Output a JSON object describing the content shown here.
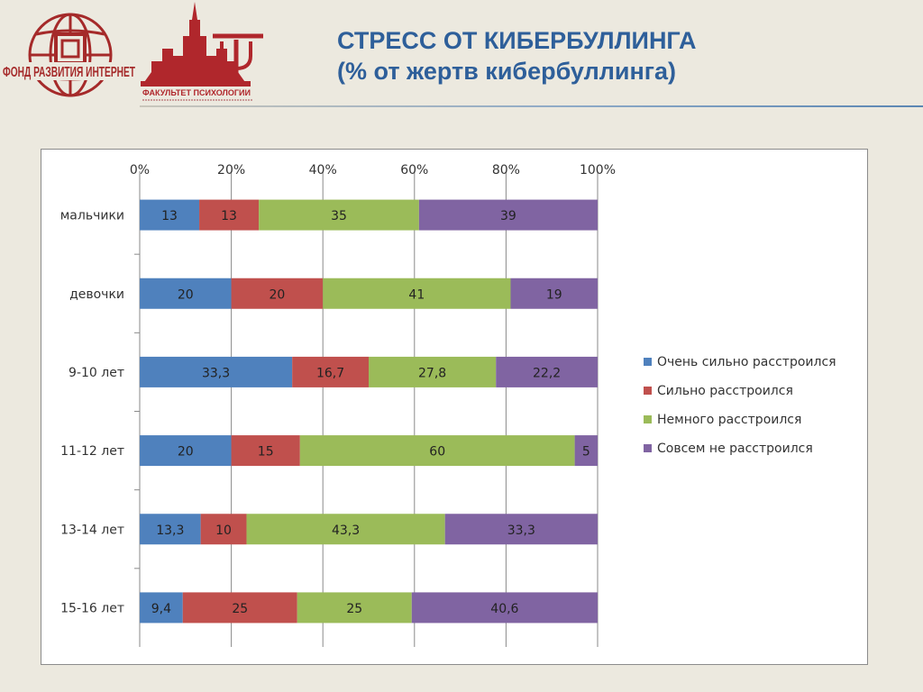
{
  "logos": {
    "left_text": "ФОНД РАЗВИТИЯ ИНТЕРНЕТ",
    "right_text": "ФАКУЛЬТЕТ ПСИХОЛОГИИ"
  },
  "title": {
    "line1": "СТРЕСС ОТ КИБЕРБУЛЛИНГА",
    "line2": "(% от жертв кибербуллинга)"
  },
  "colors": {
    "title": "#2e5f9a",
    "logo_red": "#a52a2a",
    "series": [
      "#4f81bd",
      "#c0504d",
      "#9bbb59",
      "#8064a2"
    ]
  },
  "chart_data": {
    "type": "bar",
    "orientation": "horizontal",
    "stacked": "percent",
    "categories": [
      "мальчики",
      "девочки",
      "9-10 лет",
      "11-12 лет",
      "13-14 лет",
      "15-16 лет"
    ],
    "x_ticks": [
      "0%",
      "20%",
      "40%",
      "60%",
      "80%",
      "100%"
    ],
    "xlim": [
      0,
      100
    ],
    "x_axis_position": "top",
    "grid": true,
    "legend_position": "right",
    "series": [
      {
        "name": "Очень сильно расстроился",
        "values": [
          "13",
          "20",
          "33,3",
          "20",
          "13,3",
          "9,4"
        ]
      },
      {
        "name": "Сильно расстроился",
        "values": [
          "13",
          "20",
          "16,7",
          "15",
          "10",
          "25"
        ]
      },
      {
        "name": "Немного расстроился",
        "values": [
          "35",
          "41",
          "27,8",
          "60",
          "43,3",
          "25"
        ]
      },
      {
        "name": "Совсем не расстроился",
        "values": [
          "39",
          "19",
          "22,2",
          "5",
          "33,3",
          "40,6"
        ]
      }
    ]
  }
}
